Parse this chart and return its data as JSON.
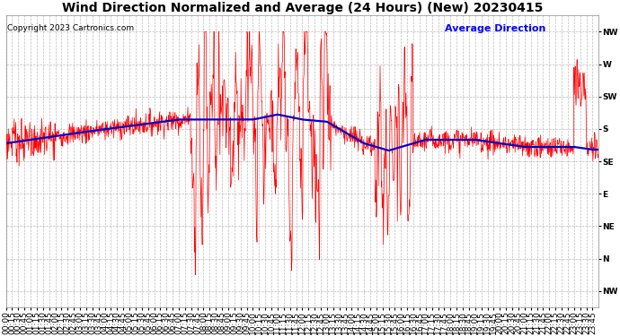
{
  "title": "Wind Direction Normalized and Average (24 Hours) (New) 20230415",
  "copyright_text": "Copyright 2023 Cartronics.com",
  "legend_text": "Average Direction",
  "legend_color": "#0000ff",
  "line_color_raw": "#ff0000",
  "line_color_avg": "#0000cc",
  "background_color": "#ffffff",
  "grid_color": "#aaaaaa",
  "ytick_labels": [
    "NW",
    "W",
    "SW",
    "S",
    "SE",
    "E",
    "NE",
    "N",
    "NW"
  ],
  "ytick_values": [
    360,
    315,
    270,
    225,
    180,
    135,
    90,
    45,
    0
  ],
  "ylim": [
    -22.5,
    382.5
  ],
  "title_fontsize": 10,
  "tick_fontsize": 6.5,
  "copyright_fontsize": 6.5,
  "legend_fontsize": 8,
  "figwidth": 6.9,
  "figheight": 3.75,
  "dpi": 100
}
